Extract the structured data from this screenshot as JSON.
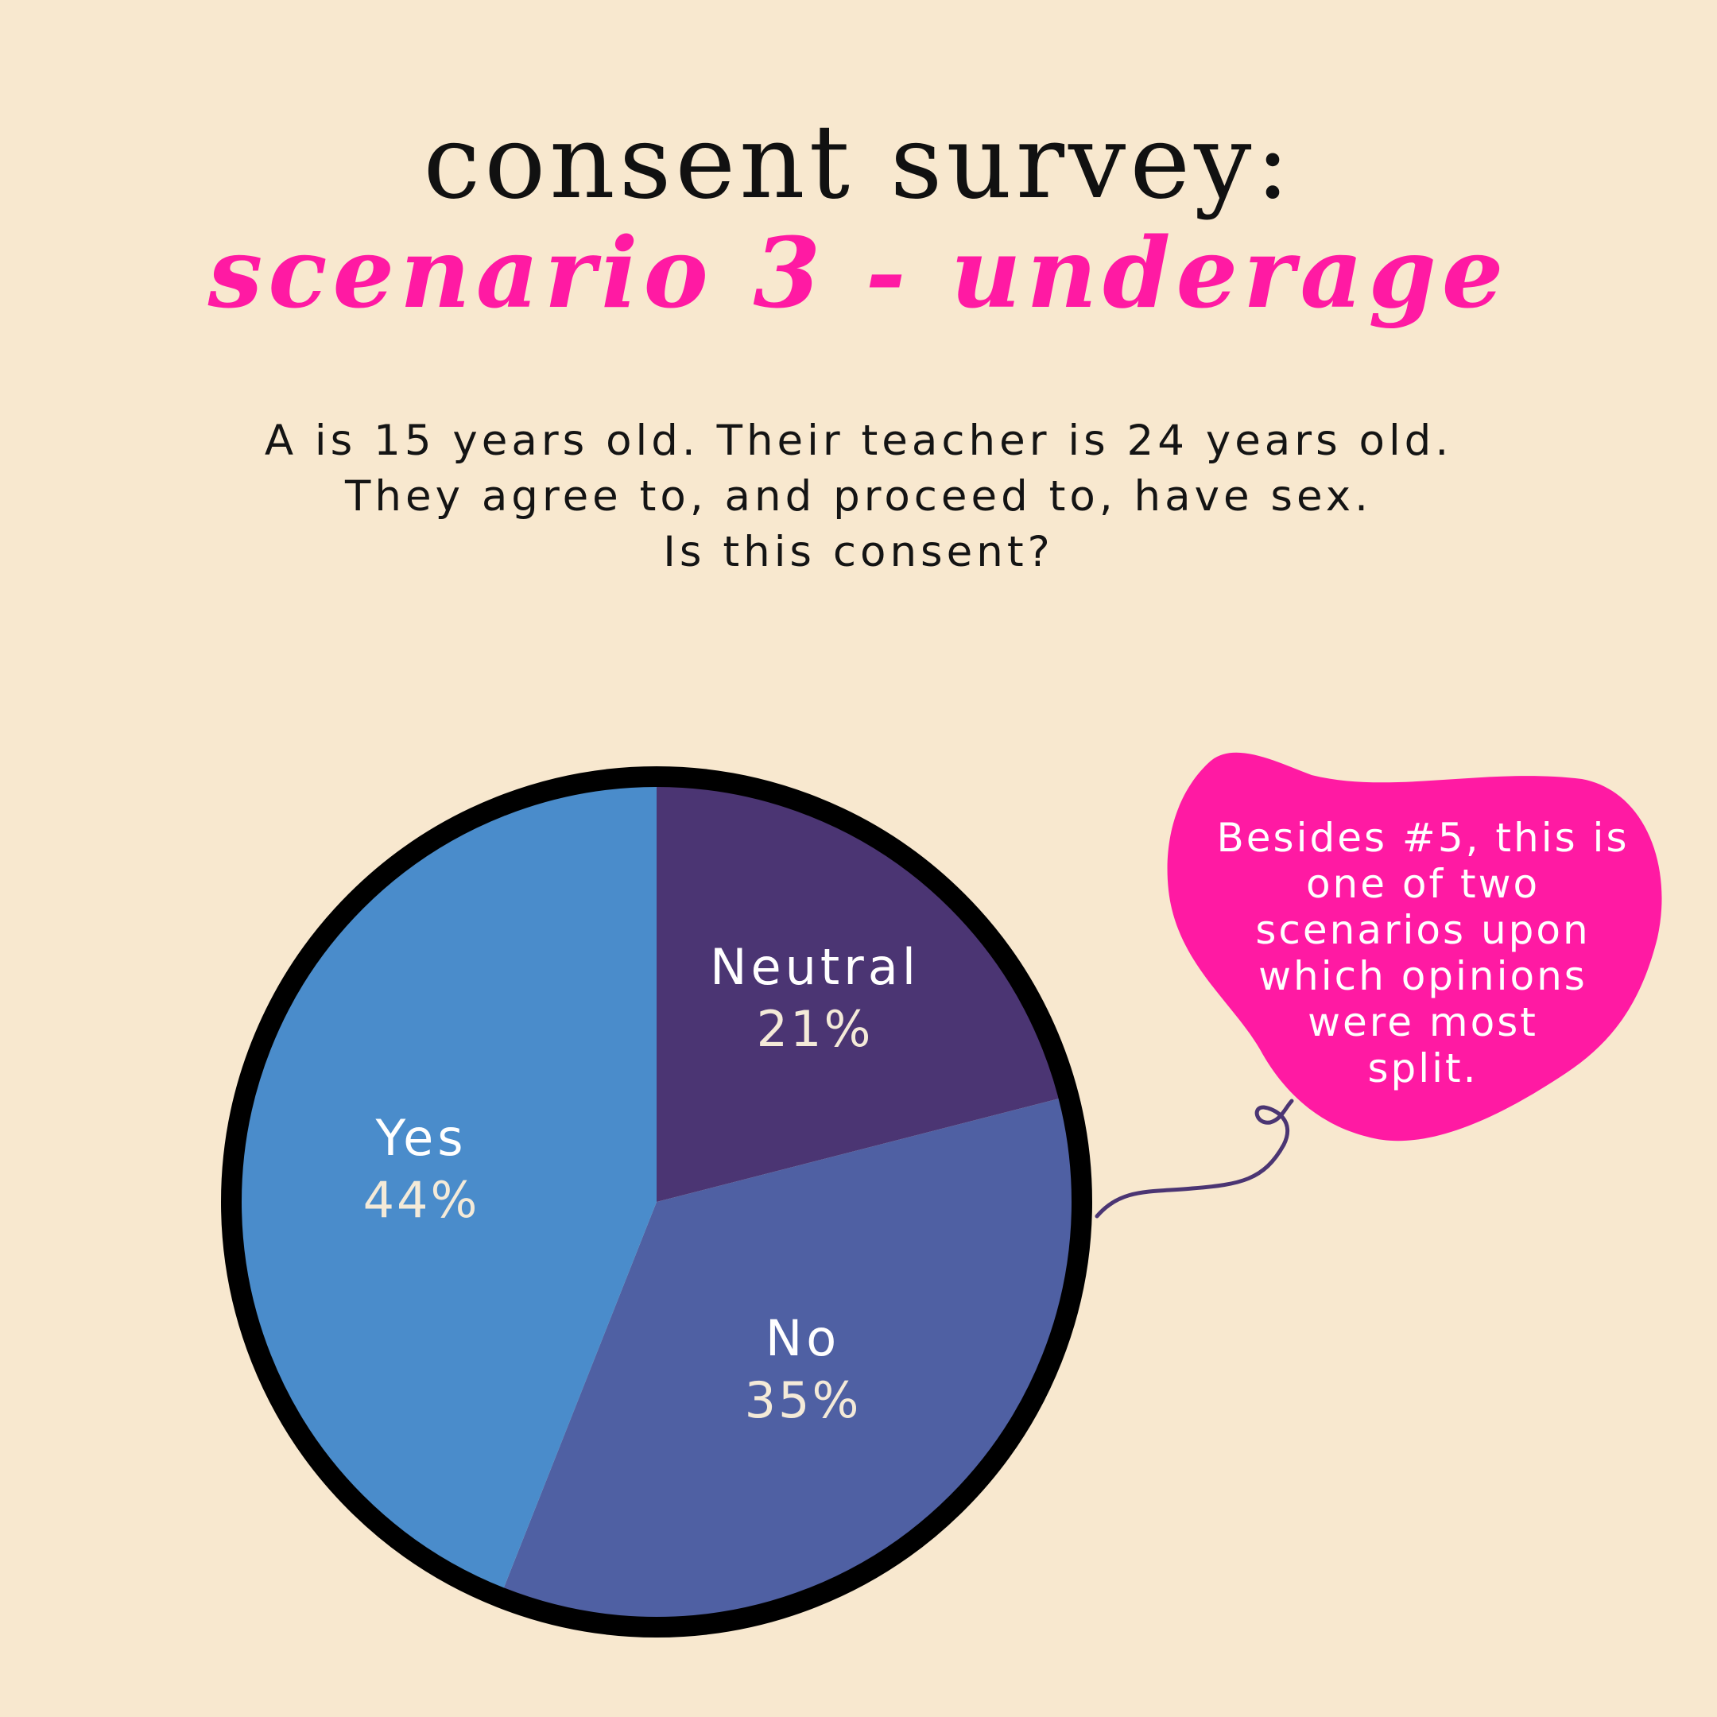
{
  "title": "consent survey:",
  "subtitle": "scenario 3 - underage",
  "question": {
    "line1": "A is 15 years old. Their teacher is 24 years old.",
    "line2": "They agree to, and proceed to, have sex.",
    "line3": "Is this consent?"
  },
  "callout": {
    "line1": "Besides #5, this is",
    "line2": "one of two",
    "line3": "scenarios upon",
    "line4": "which opinions",
    "line5": "were most",
    "line6": "split."
  },
  "colors": {
    "background": "#f8e8cf",
    "title": "#111111",
    "subtitle": "#ff1aa3",
    "callout": "#ff1aa3",
    "neutral": "#4b3573",
    "no": "#4f60a3",
    "yes": "#4a8ccb",
    "outline": "#000000",
    "tail": "#4b3573"
  },
  "chart_data": {
    "type": "pie",
    "slices": [
      {
        "label": "Neutral",
        "value": 21,
        "display": "21%",
        "color": "#4b3573"
      },
      {
        "label": "No",
        "value": 35,
        "display": "35%",
        "color": "#4f60a3"
      },
      {
        "label": "Yes",
        "value": 44,
        "display": "44%",
        "color": "#4a8ccb"
      }
    ],
    "start_angle_deg": 0,
    "direction": "clockwise"
  }
}
